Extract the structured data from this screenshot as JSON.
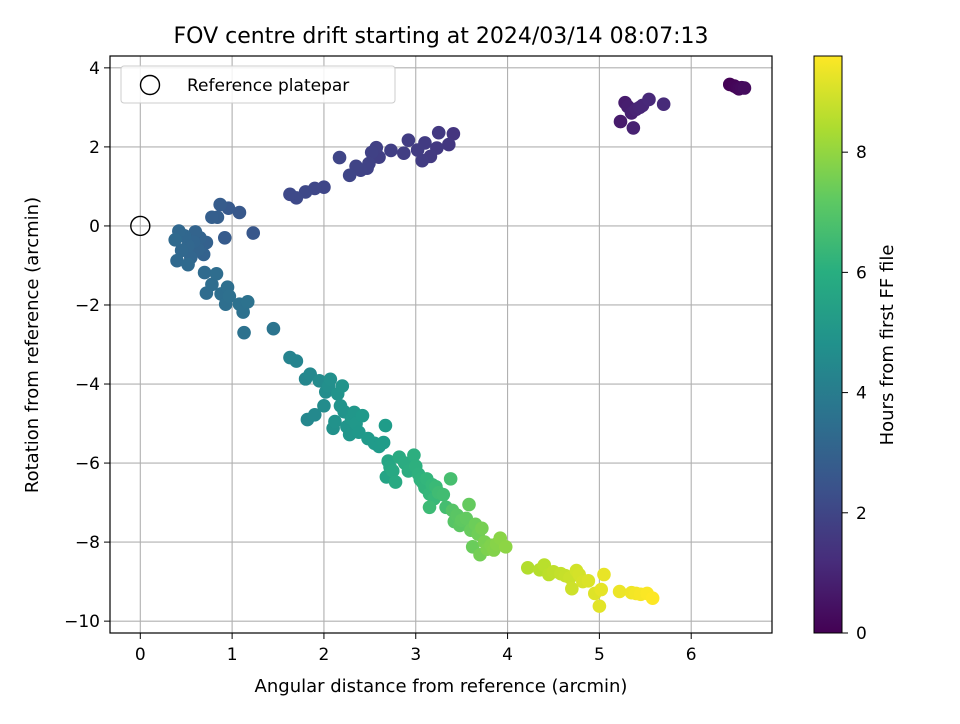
{
  "chart_data": {
    "type": "scatter",
    "title": "FOV centre drift starting at 2024/03/14 08:07:13",
    "xlabel": "Angular distance from reference (arcmin)",
    "ylabel": "Rotation from reference (arcmin)",
    "xlim": [
      -0.33,
      6.88
    ],
    "ylim": [
      -10.3,
      4.3
    ],
    "xticks": [
      0,
      1,
      2,
      3,
      4,
      5,
      6
    ],
    "yticks": [
      -10,
      -8,
      -6,
      -4,
      -2,
      0,
      2,
      4
    ],
    "grid": true,
    "legend": {
      "placement": "top-left",
      "label": "Reference platepar"
    },
    "reference": {
      "x": 0,
      "y": 0
    },
    "colorbar": {
      "label": "Hours from first FF file",
      "colormap": "viridis",
      "range": [
        0,
        9.6
      ],
      "ticks": [
        0,
        2,
        4,
        6,
        8
      ]
    },
    "series": [
      {
        "points": [
          [
            6.42,
            3.58,
            0.05
          ],
          [
            6.47,
            3.54,
            0.1
          ],
          [
            6.5,
            3.5,
            0.15
          ],
          [
            6.52,
            3.47,
            0.2
          ],
          [
            6.55,
            3.5,
            0.25
          ],
          [
            6.58,
            3.49,
            0.3
          ],
          [
            5.23,
            2.64,
            0.7
          ],
          [
            5.28,
            3.12,
            0.75
          ],
          [
            5.31,
            3.02,
            0.8
          ],
          [
            5.35,
            2.86,
            0.85
          ],
          [
            5.37,
            2.48,
            0.9
          ],
          [
            5.4,
            2.95,
            0.95
          ],
          [
            5.44,
            3.0,
            1.0
          ],
          [
            5.47,
            3.05,
            1.05
          ],
          [
            5.54,
            3.2,
            1.1
          ],
          [
            5.7,
            3.08,
            1.15
          ],
          [
            3.41,
            2.33,
            1.5
          ],
          [
            3.36,
            2.06,
            1.55
          ],
          [
            3.25,
            2.36,
            1.6
          ],
          [
            3.23,
            1.97,
            1.62
          ],
          [
            3.16,
            1.76,
            1.65
          ],
          [
            3.1,
            2.1,
            1.68
          ],
          [
            3.07,
            1.65,
            1.7
          ],
          [
            3.02,
            1.92,
            1.72
          ],
          [
            2.92,
            2.17,
            1.75
          ],
          [
            2.87,
            1.84,
            1.78
          ],
          [
            2.73,
            1.91,
            1.8
          ],
          [
            2.6,
            1.74,
            1.82
          ],
          [
            2.57,
            1.98,
            1.85
          ],
          [
            2.52,
            1.86,
            1.88
          ],
          [
            2.49,
            1.58,
            1.9
          ],
          [
            2.47,
            1.46,
            1.92
          ],
          [
            2.4,
            1.41,
            1.95
          ],
          [
            2.35,
            1.51,
            1.97
          ],
          [
            2.28,
            1.28,
            2.0
          ],
          [
            2.17,
            1.73,
            2.02
          ],
          [
            2.0,
            0.98,
            2.05
          ],
          [
            1.9,
            0.95,
            2.08
          ],
          [
            1.8,
            0.86,
            2.1
          ],
          [
            1.7,
            0.71,
            2.12
          ],
          [
            1.63,
            0.8,
            2.15
          ],
          [
            1.23,
            -0.18,
            2.6
          ],
          [
            1.08,
            0.34,
            2.65
          ],
          [
            0.96,
            0.45,
            2.7
          ],
          [
            0.92,
            -0.3,
            2.75
          ],
          [
            0.87,
            0.54,
            2.8
          ],
          [
            0.84,
            0.22,
            2.85
          ],
          [
            0.78,
            0.22,
            2.9
          ],
          [
            0.72,
            -0.42,
            2.95
          ],
          [
            0.69,
            -0.72,
            3.0
          ],
          [
            0.65,
            -0.3,
            3.02
          ],
          [
            0.63,
            -0.6,
            3.05
          ],
          [
            0.6,
            -0.15,
            3.07
          ],
          [
            0.58,
            -0.4,
            3.1
          ],
          [
            0.55,
            -0.8,
            3.12
          ],
          [
            0.52,
            -0.5,
            3.15
          ],
          [
            0.48,
            -0.25,
            3.17
          ],
          [
            0.45,
            -0.62,
            3.2
          ],
          [
            0.42,
            -0.13,
            3.22
          ],
          [
            0.4,
            -0.88,
            3.25
          ],
          [
            0.38,
            -0.35,
            3.27
          ],
          [
            0.52,
            -0.98,
            3.3
          ],
          [
            0.7,
            -1.18,
            3.33
          ],
          [
            0.72,
            -1.7,
            3.36
          ],
          [
            0.78,
            -1.48,
            3.4
          ],
          [
            0.83,
            -1.21,
            3.42
          ],
          [
            0.88,
            -1.72,
            3.45
          ],
          [
            0.93,
            -1.98,
            3.48
          ],
          [
            0.95,
            -1.55,
            3.5
          ],
          [
            0.97,
            -1.78,
            3.52
          ],
          [
            1.08,
            -1.98,
            3.55
          ],
          [
            1.12,
            -2.18,
            3.57
          ],
          [
            1.17,
            -1.92,
            3.6
          ],
          [
            1.13,
            -2.7,
            3.62
          ],
          [
            1.45,
            -2.6,
            3.7
          ],
          [
            1.63,
            -3.33,
            4.3
          ],
          [
            1.7,
            -3.42,
            4.35
          ],
          [
            1.8,
            -3.87,
            4.4
          ],
          [
            1.82,
            -4.9,
            4.45
          ],
          [
            1.85,
            -3.75,
            4.5
          ],
          [
            1.9,
            -4.78,
            4.55
          ],
          [
            1.95,
            -3.92,
            4.6
          ],
          [
            2.0,
            -4.55,
            4.65
          ],
          [
            2.02,
            -4.2,
            4.7
          ],
          [
            2.05,
            -4.05,
            4.75
          ],
          [
            2.07,
            -3.88,
            4.8
          ],
          [
            2.1,
            -5.12,
            4.85
          ],
          [
            2.12,
            -4.95,
            4.88
          ],
          [
            2.15,
            -4.25,
            4.9
          ],
          [
            2.18,
            -4.55,
            4.92
          ],
          [
            2.2,
            -4.05,
            4.95
          ],
          [
            2.22,
            -4.7,
            4.97
          ],
          [
            2.25,
            -5.08,
            5.0
          ],
          [
            2.28,
            -5.28,
            5.02
          ],
          [
            2.3,
            -4.88,
            5.05
          ],
          [
            2.33,
            -4.72,
            5.07
          ],
          [
            2.35,
            -5.0,
            5.1
          ],
          [
            2.38,
            -5.22,
            5.12
          ],
          [
            2.42,
            -4.8,
            5.15
          ],
          [
            2.48,
            -5.38,
            5.17
          ],
          [
            2.55,
            -5.5,
            5.2
          ],
          [
            2.6,
            -5.58,
            5.22
          ],
          [
            2.65,
            -5.48,
            5.25
          ],
          [
            2.67,
            -5.05,
            5.27
          ],
          [
            2.68,
            -6.35,
            5.6
          ],
          [
            2.7,
            -5.95,
            5.65
          ],
          [
            2.72,
            -6.1,
            5.7
          ],
          [
            2.75,
            -6.2,
            5.75
          ],
          [
            2.78,
            -6.48,
            5.8
          ],
          [
            2.82,
            -5.85,
            5.85
          ],
          [
            2.88,
            -6.0,
            5.9
          ],
          [
            2.92,
            -6.2,
            5.95
          ],
          [
            2.98,
            -5.8,
            6.0
          ],
          [
            3.0,
            -6.08,
            6.05
          ],
          [
            3.03,
            -6.28,
            6.1
          ],
          [
            3.05,
            -6.42,
            6.15
          ],
          [
            3.08,
            -6.5,
            6.2
          ],
          [
            3.1,
            -6.62,
            6.25
          ],
          [
            3.12,
            -6.4,
            6.3
          ],
          [
            3.15,
            -6.78,
            6.35
          ],
          [
            3.18,
            -6.55,
            6.4
          ],
          [
            3.2,
            -6.9,
            6.45
          ],
          [
            3.22,
            -6.6,
            6.5
          ],
          [
            3.15,
            -7.12,
            6.55
          ],
          [
            3.25,
            -6.75,
            6.6
          ],
          [
            3.3,
            -6.8,
            6.65
          ],
          [
            3.33,
            -7.12,
            6.7
          ],
          [
            3.38,
            -6.4,
            6.75
          ],
          [
            3.4,
            -7.2,
            7.0
          ],
          [
            3.42,
            -7.48,
            7.05
          ],
          [
            3.45,
            -7.32,
            7.1
          ],
          [
            3.48,
            -7.58,
            7.15
          ],
          [
            3.5,
            -7.45,
            7.2
          ],
          [
            3.55,
            -7.4,
            7.25
          ],
          [
            3.58,
            -7.05,
            7.3
          ],
          [
            3.6,
            -7.7,
            7.35
          ],
          [
            3.62,
            -8.12,
            7.4
          ],
          [
            3.65,
            -7.55,
            7.45
          ],
          [
            3.68,
            -7.8,
            7.5
          ],
          [
            3.7,
            -8.32,
            7.55
          ],
          [
            3.72,
            -7.65,
            7.6
          ],
          [
            3.75,
            -8.0,
            7.65
          ],
          [
            3.78,
            -8.18,
            7.7
          ],
          [
            3.82,
            -8.08,
            7.75
          ],
          [
            3.85,
            -8.2,
            7.8
          ],
          [
            3.88,
            -8.05,
            7.85
          ],
          [
            3.92,
            -7.9,
            7.9
          ],
          [
            3.98,
            -8.12,
            7.95
          ],
          [
            4.22,
            -8.65,
            8.5
          ],
          [
            4.35,
            -8.7,
            8.55
          ],
          [
            4.4,
            -8.58,
            8.6
          ],
          [
            4.45,
            -8.82,
            8.65
          ],
          [
            4.5,
            -8.75,
            8.7
          ],
          [
            4.58,
            -8.8,
            8.75
          ],
          [
            4.63,
            -8.85,
            8.8
          ],
          [
            4.68,
            -8.9,
            8.85
          ],
          [
            4.7,
            -9.18,
            8.9
          ],
          [
            4.75,
            -8.72,
            8.95
          ],
          [
            4.78,
            -8.82,
            9.0
          ],
          [
            4.82,
            -9.0,
            9.05
          ],
          [
            4.88,
            -8.98,
            9.1
          ],
          [
            4.95,
            -9.3,
            9.15
          ],
          [
            5.0,
            -9.62,
            9.2
          ],
          [
            5.02,
            -9.2,
            9.25
          ],
          [
            5.05,
            -8.82,
            9.3
          ],
          [
            5.22,
            -9.25,
            9.35
          ],
          [
            5.35,
            -9.28,
            9.4
          ],
          [
            5.4,
            -9.3,
            9.45
          ],
          [
            5.45,
            -9.32,
            9.5
          ],
          [
            5.52,
            -9.3,
            9.55
          ],
          [
            5.58,
            -9.42,
            9.6
          ]
        ]
      }
    ]
  }
}
